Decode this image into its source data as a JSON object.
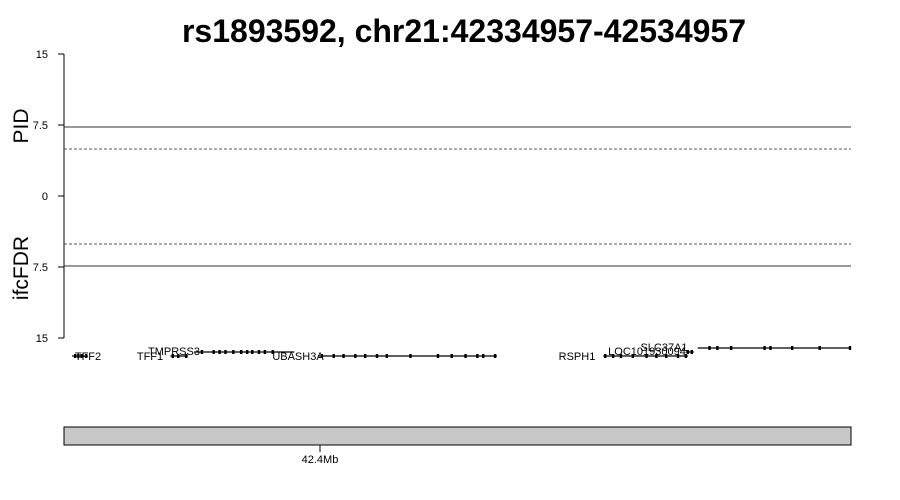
{
  "chart_data": {
    "type": "scatter",
    "title": "rs1893592, chr21:42334957-42534957",
    "region": {
      "chromosome": "chr21",
      "start": 42334957,
      "end": 42534957,
      "snp": "rs1893592"
    },
    "upper_panel": {
      "ylabel": "PID",
      "ylim": [
        0,
        15
      ],
      "yticks": [
        "15",
        "7.5",
        "0"
      ],
      "significance_line": 7.5,
      "suggestive_line": 5,
      "points": []
    },
    "lower_panel": {
      "ylabel": "ifcFDR",
      "ylim": [
        0,
        15
      ],
      "yticks": [
        "7.5",
        "15"
      ],
      "significance_line": 7.5,
      "suggestive_line": 5,
      "points": []
    },
    "genes": [
      {
        "name": "TFF2",
        "start": 42337000,
        "end": 42341000,
        "row": 0,
        "exons": [
          42337800,
          42338600,
          42339400,
          42340600
        ]
      },
      {
        "name": "TFF1",
        "start": 42362000,
        "end": 42366500,
        "row": 0,
        "exons": [
          42362600,
          42364000,
          42366000
        ]
      },
      {
        "name": "TMPRSS3",
        "start": 42368000,
        "end": 42393500,
        "row": 1,
        "exons": [
          42370000,
          42373000,
          42374500,
          42376000,
          42378000,
          42380000,
          42381500,
          42382800,
          42384500,
          42386000,
          42388000
        ]
      },
      {
        "name": "UBASH3A",
        "start": 42399500,
        "end": 42445000,
        "row": 0,
        "exons": [
          42400500,
          42403500,
          42406000,
          42409000,
          42411500,
          42414500,
          42417000,
          42423000,
          42430000,
          42433500,
          42437000,
          42440000,
          42441500,
          42444500
        ]
      },
      {
        "name": "RSPH1",
        "start": 42472000,
        "end": 42493500,
        "row": 0,
        "exons": [
          42472500,
          42474500,
          42476500,
          42479500,
          42483000,
          42485500,
          42488000,
          42491000,
          42493000
        ]
      },
      {
        "name": "LOC101930094",
        "start": 42493000,
        "end": 42495000,
        "row": 1,
        "exons": [
          42493500,
          42494500
        ]
      },
      {
        "name": "SLC37A1",
        "start": 42496000,
        "end": 42534957,
        "row": 2,
        "exons": [
          42499000,
          42501000,
          42504500,
          42513000,
          42514500,
          42520000,
          42527000,
          42534700
        ]
      }
    ],
    "x_axis": {
      "ticks": [
        {
          "value": 42400000,
          "label": "42.4Mb"
        }
      ],
      "xlim": [
        42334957,
        42534957
      ]
    },
    "grid": false,
    "legend": "none"
  }
}
